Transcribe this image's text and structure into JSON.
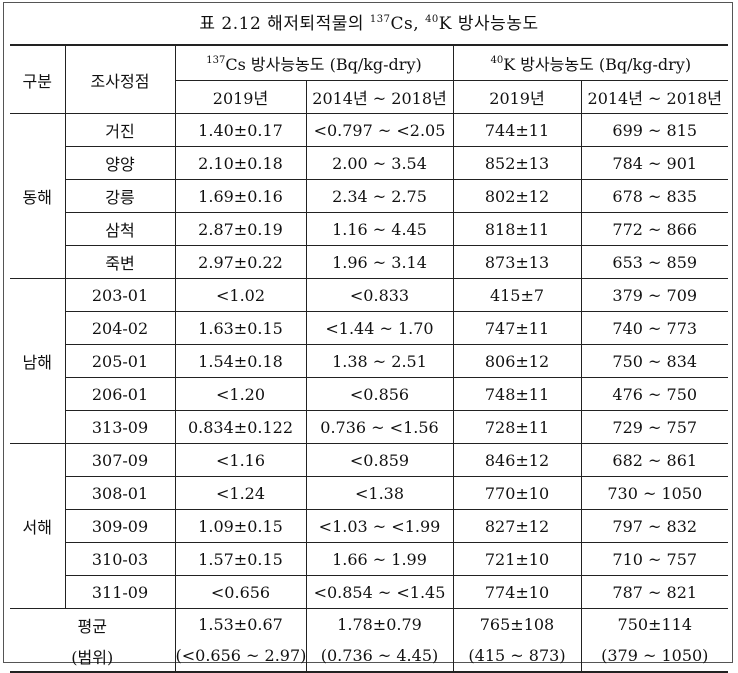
{
  "title": {
    "prefix": "표 2.12 해저퇴적물의 ",
    "cs_mass": "137",
    "cs_sym": "Cs, ",
    "k_mass": "40",
    "k_sym": "K 방사능농도"
  },
  "header": {
    "group": "구분",
    "station": "조사정점",
    "cs_mass": "137",
    "cs_label": "Cs 방사능농도 (Bq/kg-dry)",
    "k_mass": "40",
    "k_label": "K 방사능농도 (Bq/kg-dry)",
    "y2019": "2019년",
    "yrange": "2014년 ~ 2018년"
  },
  "regions": [
    {
      "name": "동해",
      "rows": [
        {
          "station": "거진",
          "cs2019": "1.40±0.17",
          "cs_range": "<0.797 ~ <2.05",
          "k2019": "744±11",
          "k_range": "699 ~ 815"
        },
        {
          "station": "양양",
          "cs2019": "2.10±0.18",
          "cs_range": "2.00 ~ 3.54",
          "k2019": "852±13",
          "k_range": "784 ~ 901"
        },
        {
          "station": "강릉",
          "cs2019": "1.69±0.16",
          "cs_range": "2.34 ~ 2.75",
          "k2019": "802±12",
          "k_range": "678 ~ 835"
        },
        {
          "station": "삼척",
          "cs2019": "2.87±0.19",
          "cs_range": "1.16 ~ 4.45",
          "k2019": "818±11",
          "k_range": "772 ~ 866"
        },
        {
          "station": "죽변",
          "cs2019": "2.97±0.22",
          "cs_range": "1.96 ~ 3.14",
          "k2019": "873±13",
          "k_range": "653 ~ 859"
        }
      ]
    },
    {
      "name": "남해",
      "rows": [
        {
          "station": "203-01",
          "cs2019": "<1.02",
          "cs_range": "<0.833",
          "k2019": "415±7",
          "k_range": "379 ~ 709"
        },
        {
          "station": "204-02",
          "cs2019": "1.63±0.15",
          "cs_range": "<1.44 ~ 1.70",
          "k2019": "747±11",
          "k_range": "740 ~ 773"
        },
        {
          "station": "205-01",
          "cs2019": "1.54±0.18",
          "cs_range": "1.38 ~ 2.51",
          "k2019": "806±12",
          "k_range": "750 ~ 834"
        },
        {
          "station": "206-01",
          "cs2019": "<1.20",
          "cs_range": "<0.856",
          "k2019": "748±11",
          "k_range": "476 ~ 750"
        },
        {
          "station": "313-09",
          "cs2019": "0.834±0.122",
          "cs_range": "0.736 ~ <1.56",
          "k2019": "728±11",
          "k_range": "729 ~ 757"
        }
      ]
    },
    {
      "name": "서해",
      "rows": [
        {
          "station": "307-09",
          "cs2019": "<1.16",
          "cs_range": "<0.859",
          "k2019": "846±12",
          "k_range": "682 ~ 861"
        },
        {
          "station": "308-01",
          "cs2019": "<1.24",
          "cs_range": "<1.38",
          "k2019": "770±10",
          "k_range": "730 ~ 1050"
        },
        {
          "station": "309-09",
          "cs2019": "1.09±0.15",
          "cs_range": "<1.03 ~ <1.99",
          "k2019": "827±12",
          "k_range": "797 ~ 832"
        },
        {
          "station": "310-03",
          "cs2019": "1.57±0.15",
          "cs_range": "1.66 ~ 1.99",
          "k2019": "721±10",
          "k_range": "710 ~ 757"
        },
        {
          "station": "311-09",
          "cs2019": "<0.656",
          "cs_range": "<0.854 ~ <1.45",
          "k2019": "774±10",
          "k_range": "787 ~ 821"
        }
      ]
    }
  ],
  "average": {
    "label": "평균",
    "range_label": "(범위)",
    "cs2019": "1.53±0.67",
    "cs2019_range": "(<0.656 ~ 2.97)",
    "cs_range": "1.78±0.79",
    "cs_range_range": "(0.736 ~ 4.45)",
    "k2019": "765±108",
    "k2019_range": "(415 ~ 873)",
    "k_range": "750±114",
    "k_range_range": "(379 ~ 1050)"
  }
}
